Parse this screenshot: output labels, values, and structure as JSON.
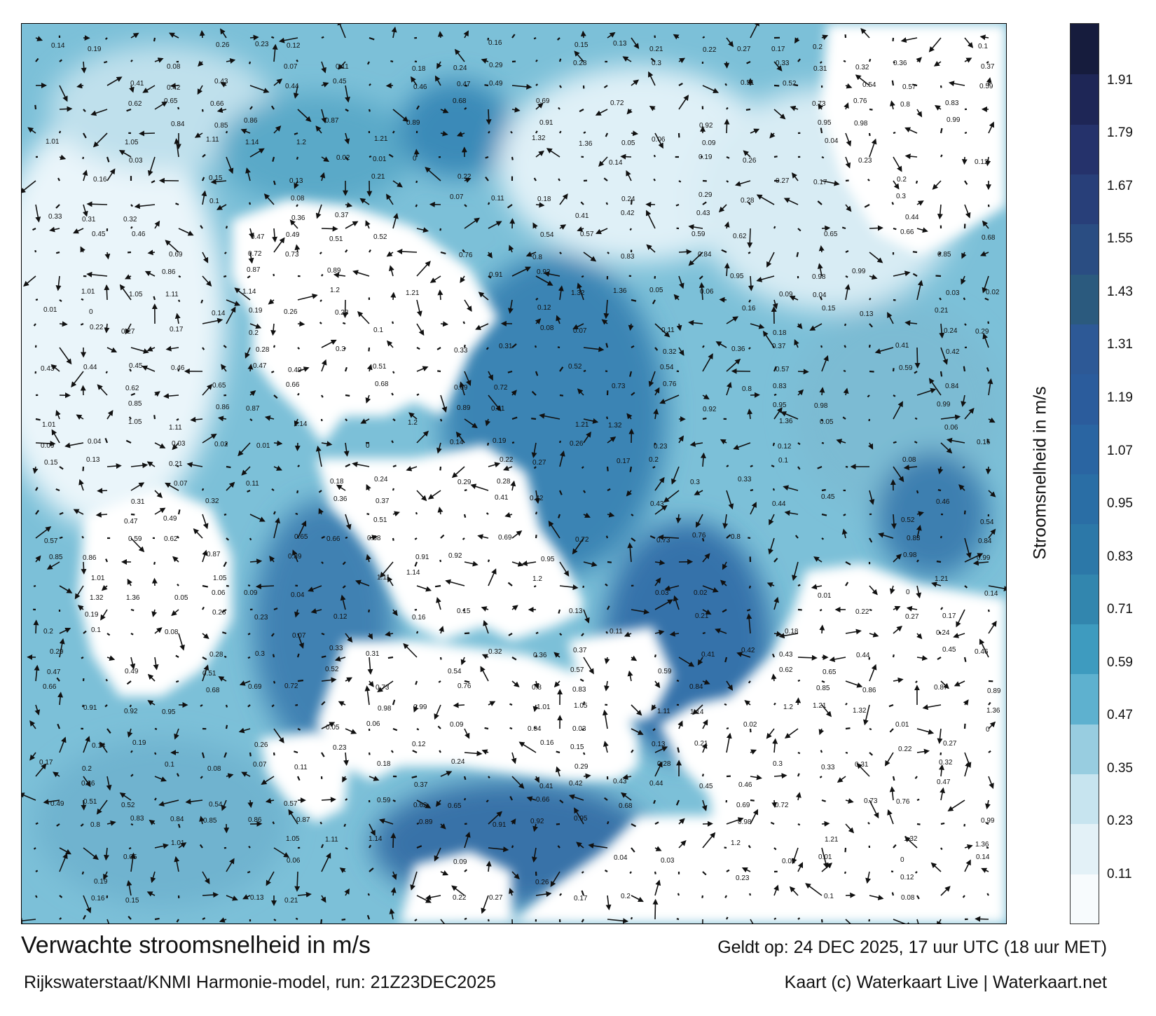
{
  "map": {
    "colors": {
      "land": "#ffffff",
      "low": "#e3f1f7",
      "mid": "#4aa3c4",
      "high": "#2f6fa6",
      "very_high": "#284a86",
      "arrow": "#111111"
    },
    "speed_labels": [
      "0.14",
      "0.19",
      "0.26",
      "0.23",
      "0.12",
      "0.16",
      "0.15",
      "0.13",
      "0.21",
      "0.22",
      "0.27",
      "0.17",
      "0.2",
      "0.1",
      "0.08",
      "0.07",
      "0.11",
      "0.18",
      "0.24",
      "0.29",
      "0.28",
      "0.3",
      "0.33",
      "0.31",
      "0.32",
      "0.36",
      "0.37",
      "0.41",
      "0.42",
      "0.43",
      "0.44",
      "0.45",
      "0.46",
      "0.47",
      "0.49",
      "0.51",
      "0.52",
      "0.54",
      "0.57",
      "0.59",
      "0.62",
      "0.65",
      "0.66",
      "0.68",
      "0.69",
      "0.72",
      "0.73",
      "0.76",
      "0.8",
      "0.83",
      "0.84",
      "0.85",
      "0.86",
      "0.87",
      "0.89",
      "0.91",
      "0.92",
      "0.95",
      "0.98",
      "0.99",
      "1.01",
      "1.05",
      "1.11",
      "1.14",
      "1.2",
      "1.21",
      "1.32",
      "1.36",
      "0.05",
      "0.06",
      "0.09",
      "0.04",
      "0.03",
      "0.02",
      "0.01",
      "0"
    ]
  },
  "colorbar": {
    "label": "Stroomsnelheid in m/s",
    "ticks": [
      "0.11",
      "0.23",
      "0.35",
      "0.47",
      "0.59",
      "0.71",
      "0.83",
      "0.95",
      "1.07",
      "1.19",
      "1.31",
      "1.43",
      "1.55",
      "1.67",
      "1.79",
      "1.91"
    ],
    "colors": [
      "#f7fbfd",
      "#e3f1f7",
      "#c7e4ef",
      "#98cde0",
      "#5eb1cf",
      "#3e9bbf",
      "#3286ae",
      "#2c78a8",
      "#2a6ea5",
      "#2a65a2",
      "#2b5c9c",
      "#2d5996",
      "#2b5a7e",
      "#2a4d82",
      "#283f79",
      "#25326b",
      "#1e2656",
      "#161c3d"
    ]
  },
  "footer": {
    "title": "Verwachte stroomsnelheid in m/s",
    "subtitle": "Rijkswaterstaat/KNMI Harmonie-model, run: 21Z23DEC2025",
    "valid": "Geldt op: 24 DEC 2025, 17 uur UTC (18 uur MET)",
    "credit": "Kaart (c) Waterkaart Live | Waterkaart.net"
  }
}
